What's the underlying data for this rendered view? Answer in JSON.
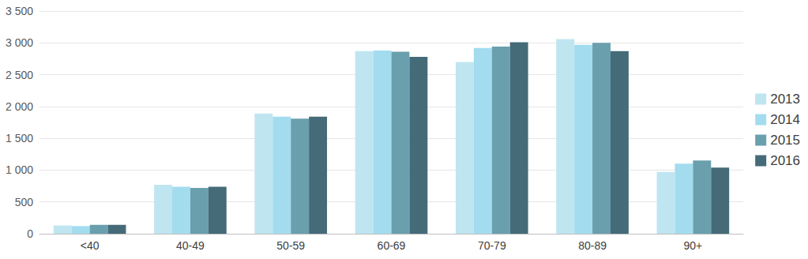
{
  "chart_data": {
    "type": "bar",
    "categories": [
      "<40",
      "40-49",
      "50-59",
      "60-69",
      "70-79",
      "80-89",
      "90+"
    ],
    "series": [
      {
        "name": "2013",
        "color": "#bfe5f1",
        "values": [
          130,
          770,
          1890,
          2870,
          2700,
          3060,
          970
        ]
      },
      {
        "name": "2014",
        "color": "#a3dcef",
        "values": [
          120,
          740,
          1840,
          2880,
          2920,
          2970,
          1100
        ]
      },
      {
        "name": "2015",
        "color": "#6a9fae",
        "values": [
          140,
          720,
          1810,
          2860,
          2940,
          3000,
          1150
        ]
      },
      {
        "name": "2016",
        "color": "#456b79",
        "values": [
          140,
          740,
          1840,
          2780,
          3010,
          2870,
          1040
        ]
      }
    ],
    "ylim": [
      0,
      3500
    ],
    "yticks": [
      0,
      500,
      {
        "value": 1000,
        "label": "1 000"
      },
      {
        "value": 1500,
        "label": "1 500"
      },
      {
        "value": 2000,
        "label": "2 000"
      },
      {
        "value": 2500,
        "label": "2 500"
      },
      {
        "value": 3000,
        "label": "3 000"
      },
      {
        "value": 3500,
        "label": "3 500"
      }
    ],
    "grid": true,
    "legend": "right"
  }
}
